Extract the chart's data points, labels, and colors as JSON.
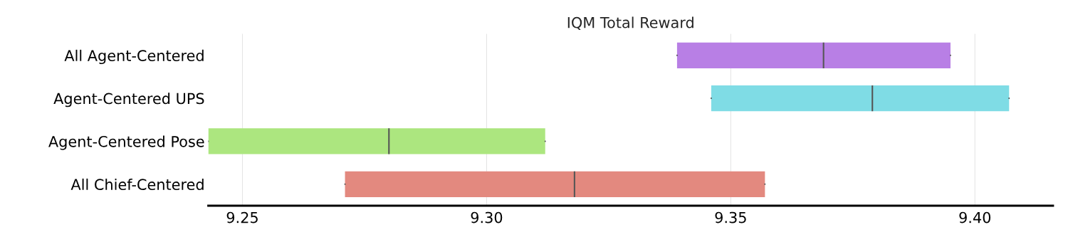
{
  "chart_data": {
    "type": "box",
    "orientation": "horizontal",
    "title": "IQM Total Reward",
    "categories": [
      "All Agent-Centered",
      "Agent-Centered UPS",
      "Agent-Centered Pose",
      "All Chief-Centered"
    ],
    "colors": [
      "#b87fe5",
      "#7fdce5",
      "#ace67f",
      "#e3897f"
    ],
    "boxes": [
      {
        "low": 9.339,
        "q1": 9.339,
        "median": 9.369,
        "q3": 9.395,
        "high": 9.395
      },
      {
        "low": 9.346,
        "q1": 9.346,
        "median": 9.379,
        "q3": 9.407,
        "high": 9.407
      },
      {
        "low": 9.243,
        "q1": 9.243,
        "median": 9.28,
        "q3": 9.312,
        "high": 9.312
      },
      {
        "low": 9.271,
        "q1": 9.271,
        "median": 9.318,
        "q3": 9.357,
        "high": 9.357
      }
    ],
    "xlim": [
      9.243,
      9.416
    ],
    "xticks": [
      9.25,
      {
        "value": 9.3,
        "label": "9.30"
      },
      9.35,
      {
        "value": 9.4,
        "label": "9.40"
      }
    ],
    "grid": "x"
  }
}
